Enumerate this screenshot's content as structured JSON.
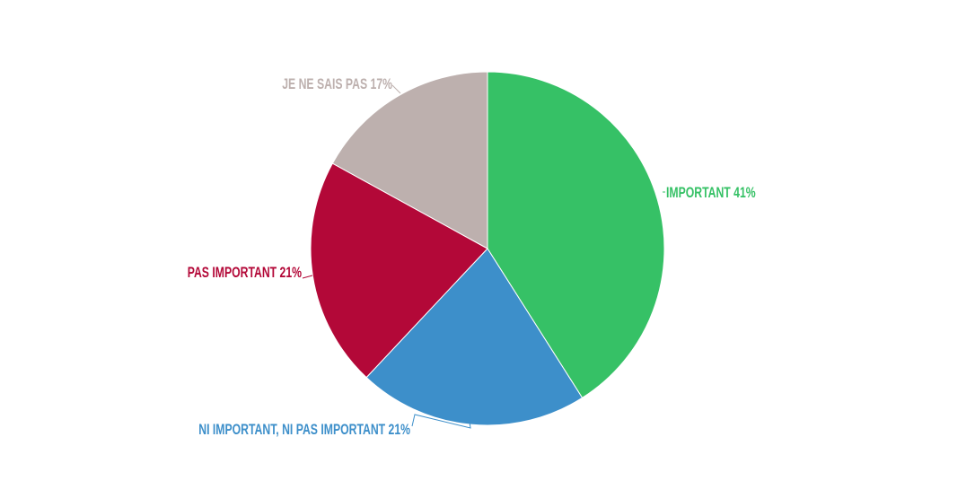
{
  "chart_data": {
    "type": "pie",
    "start_angle": "top, clockwise",
    "slices": [
      {
        "label": "IMPORTANT",
        "value": 41,
        "text": "IMPORTANT 41%",
        "color": "#36c166"
      },
      {
        "label": "NI IMPORTANT, NI PAS IMPORTANT",
        "value": 21,
        "text": "NI IMPORTANT, NI PAS IMPORTANT 21%",
        "color": "#3d8fca"
      },
      {
        "label": "PAS IMPORTANT",
        "value": 21,
        "text": "PAS IMPORTANT 21%",
        "color": "#b30838"
      },
      {
        "label": "JE NE SAIS PAS",
        "value": 17,
        "text": "JE NE SAIS PAS 17%",
        "color": "#bdb0ae"
      }
    ],
    "unit": "%",
    "legend": "none (labels on slices)"
  }
}
